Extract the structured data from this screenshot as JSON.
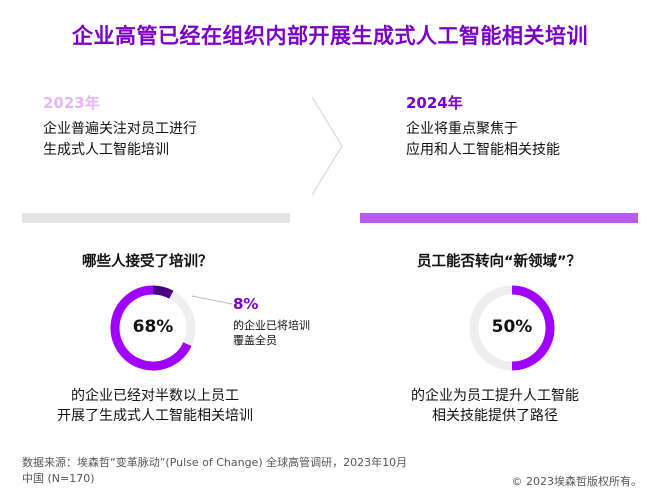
{
  "title": "企业高管已经在组织内部开展生成式人工智能相关培训",
  "left": {
    "year": "2023年",
    "description_lines": [
      "企业普遍关注对员工进行",
      "生成式人工智能培训"
    ],
    "question": "哪些人接受了培训？",
    "result_lines": [
      "的企业已经对半数以上员工",
      "开展了生成式人工智能相关培训"
    ]
  },
  "right": {
    "year": "2024年",
    "description_lines": [
      "企业将重点聚焦于",
      "应用和人工智能相关技能"
    ],
    "question": "员工能否转向“新领域”？",
    "result_lines": [
      "的企业为员工提升人工智能",
      "相关技能提供了路径"
    ]
  },
  "colors": {
    "accent": "#7A00C8",
    "donut_fill": "#A100FF",
    "donut_dark": "#4B0082",
    "donut_track": "#EEEEEE",
    "bar_2023": "#E3E3E3",
    "bar_2024": "#B85CF0",
    "year_2023": "#E7B6F7"
  },
  "chart_data": [
    {
      "type": "pie",
      "variant": "donut",
      "center_label": "68%",
      "segments": [
        {
          "name": "",
          "value": 68
        },
        {
          "name": "",
          "value": 8
        },
        {
          "name": "",
          "value": 24
        }
      ],
      "callout": {
        "value": "8%",
        "text_lines": [
          "的企业已将培训",
          "覆盖全员"
        ]
      }
    },
    {
      "type": "pie",
      "variant": "donut",
      "center_label": "50%",
      "segments": [
        {
          "name": "",
          "value": 50
        },
        {
          "name": "",
          "value": 50
        }
      ]
    }
  ],
  "footer": {
    "source_lines": [
      "数据来源：埃森哲“变革脉动”(Pulse of Change) 全球高管调研，2023年10月",
      "中国 (N=170)"
    ],
    "copyright": "© 2023埃森哲版权所有。"
  }
}
